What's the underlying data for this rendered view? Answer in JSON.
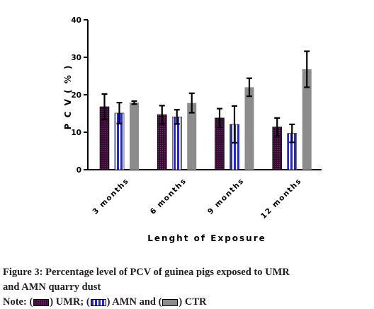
{
  "chart_data": {
    "type": "bar",
    "xlabel": "Lenght of Exposure",
    "ylabel": "P C V  ( % )",
    "ylim": [
      0,
      40
    ],
    "yticks": [
      0,
      10,
      20,
      30,
      40
    ],
    "grid": false,
    "categories": [
      "3 months",
      "6 months",
      "9 months",
      "12 months"
    ],
    "series": [
      {
        "name": "UMR",
        "values": [
          16.8,
          14.7,
          13.8,
          11.4
        ],
        "errors": [
          3.4,
          2.4,
          2.5,
          2.4
        ],
        "color": "#2b0f2c"
      },
      {
        "name": "AMN",
        "values": [
          15.1,
          14.1,
          12.1,
          9.7
        ],
        "errors": [
          2.8,
          1.9,
          4.9,
          2.4
        ],
        "color": "#2323ee"
      },
      {
        "name": "CTR",
        "values": [
          17.9,
          17.8,
          22.0,
          26.8
        ],
        "errors": [
          0.4,
          2.6,
          2.4,
          4.8
        ],
        "color": "#8c8c8c"
      }
    ]
  },
  "caption": {
    "line1": "Figure 3: Percentage level of PCV of guinea pigs exposed to UMR",
    "line2": "and AMN quarry dust",
    "note_prefix": "Note: (",
    "note_umr": ") UMR; (",
    "note_amn": ") AMN and (",
    "note_ctr": ") CTR"
  }
}
